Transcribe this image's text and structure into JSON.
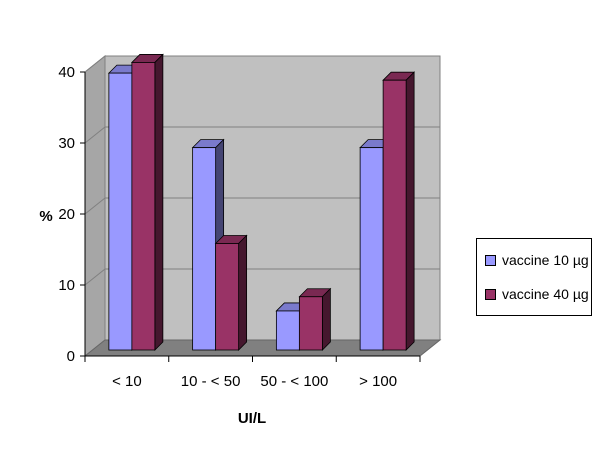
{
  "chart_data": {
    "type": "bar",
    "title": "",
    "xlabel": "UI/L",
    "ylabel": "%",
    "categories": [
      "< 10",
      "10 - < 50",
      "50 - < 100",
      "> 100"
    ],
    "series": [
      {
        "name": "vaccine 10 µg",
        "values": [
          39,
          28.5,
          5.5,
          28.5
        ],
        "color": "#9999ff"
      },
      {
        "name": "vaccine 40 µg",
        "values": [
          40.5,
          15,
          7.5,
          38
        ],
        "color": "#993366"
      }
    ],
    "yticks": [
      "0",
      "10",
      "20",
      "30",
      "40"
    ],
    "ylim": [
      0,
      40
    ],
    "grid": true,
    "legend": "right",
    "style": "3d-clustered-column"
  }
}
